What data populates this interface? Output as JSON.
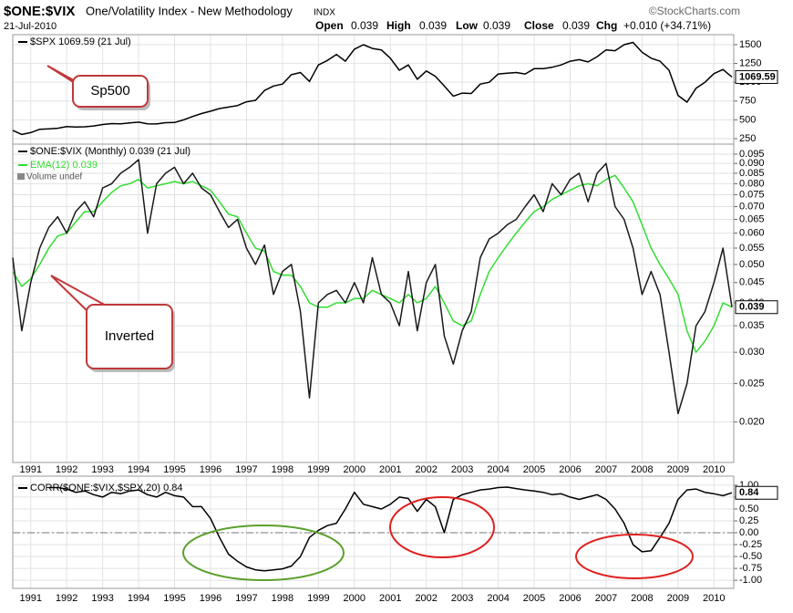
{
  "header": {
    "symbol": "$ONE:$VIX",
    "name": "One/Volatility Index - New Methodology",
    "exchange": "INDX",
    "source": "©StockCharts.com",
    "date": "21-Jul-2010",
    "quote": [
      {
        "label": "Open",
        "value": 0.039
      },
      {
        "label": "High",
        "value": 0.039
      },
      {
        "label": "Low",
        "value": 0.039
      },
      {
        "label": "Close",
        "value": 0.039
      },
      {
        "label": "Chg",
        "value": "+0.010 (+34.71%)"
      }
    ]
  },
  "chart_data": [
    {
      "type": "line",
      "annotation": "Sp500",
      "last_value": 1069.59,
      "grid": true,
      "x": [
        1990.5,
        1990.75,
        1991,
        1991.25,
        1991.5,
        1991.75,
        1992,
        1992.25,
        1992.5,
        1992.75,
        1993,
        1993.25,
        1993.5,
        1993.75,
        1994,
        1994.25,
        1994.5,
        1994.75,
        1995,
        1995.25,
        1995.5,
        1995.75,
        1996,
        1996.25,
        1996.5,
        1996.75,
        1997,
        1997.25,
        1997.5,
        1997.75,
        1998,
        1998.25,
        1998.5,
        1998.75,
        1999,
        1999.25,
        1999.5,
        1999.75,
        2000,
        2000.25,
        2000.5,
        2000.75,
        2001,
        2001.25,
        2001.5,
        2001.75,
        2002,
        2002.25,
        2002.5,
        2002.75,
        2003,
        2003.25,
        2003.5,
        2003.75,
        2004,
        2004.25,
        2004.5,
        2004.75,
        2005,
        2005.25,
        2005.5,
        2005.75,
        2006,
        2006.25,
        2006.5,
        2006.75,
        2007,
        2007.25,
        2007.5,
        2007.75,
        2008,
        2008.25,
        2008.5,
        2008.75,
        2009,
        2009.25,
        2009.5,
        2009.75,
        2010,
        2010.25,
        2010.5
      ],
      "xlim": [
        1990.5,
        2010.55
      ],
      "ylim": [
        177,
        1633
      ],
      "yticks": [
        250,
        500,
        750,
        1000,
        1250,
        1500
      ],
      "series": [
        {
          "name": "$SPX 1069.59 (21 Jul)",
          "color": "#000000",
          "values": [
            360,
            306,
            330,
            375,
            380,
            388,
            410,
            404,
            408,
            418,
            438,
            450,
            448,
            460,
            470,
            448,
            445,
            462,
            465,
            500,
            545,
            584,
            615,
            650,
            670,
            690,
            740,
            760,
            890,
            950,
            975,
            1100,
            1130,
            1010,
            1230,
            1290,
            1370,
            1280,
            1440,
            1500,
            1450,
            1430,
            1320,
            1160,
            1230,
            1040,
            1150,
            1080,
            950,
            815,
            855,
            850,
            975,
            1000,
            1110,
            1120,
            1130,
            1110,
            1180,
            1180,
            1200,
            1230,
            1280,
            1300,
            1270,
            1340,
            1430,
            1420,
            1500,
            1530,
            1400,
            1320,
            1280,
            1160,
            825,
            735,
            920,
            1000,
            1115,
            1170,
            1070
          ]
        }
      ]
    },
    {
      "type": "line",
      "annotation": "Inverted",
      "last_value": 0.039,
      "log_scale": true,
      "grid": true,
      "volume_note": "Volume undef",
      "x": [
        1990.5,
        1990.75,
        1991,
        1991.25,
        1991.5,
        1991.75,
        1992,
        1992.25,
        1992.5,
        1992.75,
        1993,
        1993.25,
        1993.5,
        1993.75,
        1994,
        1994.25,
        1994.5,
        1994.75,
        1995,
        1995.25,
        1995.5,
        1995.75,
        1996,
        1996.25,
        1996.5,
        1996.75,
        1997,
        1997.25,
        1997.5,
        1997.75,
        1998,
        1998.25,
        1998.5,
        1998.75,
        1999,
        1999.25,
        1999.5,
        1999.75,
        2000,
        2000.25,
        2000.5,
        2000.75,
        2001,
        2001.25,
        2001.5,
        2001.75,
        2002,
        2002.25,
        2002.5,
        2002.75,
        2003,
        2003.25,
        2003.5,
        2003.75,
        2004,
        2004.25,
        2004.5,
        2004.75,
        2005,
        2005.25,
        2005.5,
        2005.75,
        2006,
        2006.25,
        2006.5,
        2006.75,
        2007,
        2007.25,
        2007.5,
        2007.75,
        2008,
        2008.25,
        2008.5,
        2008.75,
        2009,
        2009.25,
        2009.5,
        2009.75,
        2010,
        2010.25,
        2010.5
      ],
      "xlim": [
        1990.5,
        2010.55
      ],
      "xticks": [
        1991,
        1992,
        1993,
        1994,
        1995,
        1996,
        1997,
        1998,
        1999,
        2000,
        2001,
        2002,
        2003,
        2004,
        2005,
        2006,
        2007,
        2008,
        2009,
        2010
      ],
      "ylim": [
        0.0158,
        0.1007
      ],
      "yticks": [
        0.095,
        {
          "value": 0.09,
          "label": "0.090"
        },
        0.085,
        {
          "value": 0.08,
          "label": "0.080"
        },
        0.075,
        {
          "value": 0.07,
          "label": "0.070"
        },
        0.065,
        {
          "value": 0.06,
          "label": "0.060"
        },
        0.055,
        {
          "value": 0.05,
          "label": "0.050"
        },
        0.045,
        {
          "value": 0.04,
          "label": "0.040"
        },
        0.035,
        {
          "value": 0.03,
          "label": "0.030"
        },
        0.025,
        {
          "value": 0.02,
          "label": "0.020"
        }
      ],
      "series": [
        {
          "name": "$ONE:$VIX (Monthly) 0.039 (21 Jul)",
          "color": "#1a1a1a",
          "values": [
            0.052,
            0.034,
            0.045,
            0.055,
            0.062,
            0.066,
            0.06,
            0.068,
            0.072,
            0.066,
            0.078,
            0.08,
            0.085,
            0.088,
            0.092,
            0.06,
            0.08,
            0.085,
            0.088,
            0.08,
            0.085,
            0.078,
            0.075,
            0.068,
            0.062,
            0.065,
            0.055,
            0.05,
            0.056,
            0.042,
            0.048,
            0.05,
            0.038,
            0.023,
            0.04,
            0.042,
            0.043,
            0.04,
            0.045,
            0.04,
            0.052,
            0.042,
            0.04,
            0.035,
            0.048,
            0.034,
            0.045,
            0.05,
            0.033,
            0.028,
            0.034,
            0.038,
            0.052,
            0.058,
            0.06,
            0.063,
            0.065,
            0.07,
            0.075,
            0.068,
            0.08,
            0.075,
            0.082,
            0.085,
            0.072,
            0.085,
            0.09,
            0.07,
            0.065,
            0.055,
            0.042,
            0.048,
            0.042,
            0.03,
            0.021,
            0.025,
            0.035,
            0.038,
            0.045,
            0.055,
            0.039
          ]
        },
        {
          "name": "EMA(12) 0.039",
          "color": "#33dd33",
          "values": [
            0.048,
            0.044,
            0.046,
            0.05,
            0.055,
            0.059,
            0.06,
            0.064,
            0.068,
            0.068,
            0.072,
            0.076,
            0.079,
            0.08,
            0.082,
            0.078,
            0.079,
            0.08,
            0.081,
            0.08,
            0.081,
            0.079,
            0.077,
            0.072,
            0.067,
            0.066,
            0.06,
            0.055,
            0.054,
            0.048,
            0.047,
            0.047,
            0.044,
            0.04,
            0.039,
            0.039,
            0.04,
            0.04,
            0.041,
            0.041,
            0.043,
            0.042,
            0.041,
            0.04,
            0.042,
            0.04,
            0.041,
            0.044,
            0.04,
            0.036,
            0.035,
            0.036,
            0.042,
            0.048,
            0.052,
            0.056,
            0.06,
            0.064,
            0.068,
            0.07,
            0.073,
            0.075,
            0.077,
            0.079,
            0.08,
            0.079,
            0.082,
            0.084,
            0.078,
            0.072,
            0.063,
            0.055,
            0.05,
            0.046,
            0.042,
            0.034,
            0.03,
            0.032,
            0.035,
            0.04,
            0.039
          ]
        }
      ]
    },
    {
      "type": "line",
      "last_value": 0.84,
      "reference_line": 0,
      "grid": true,
      "x": [
        1990.5,
        1990.75,
        1991,
        1991.25,
        1991.5,
        1991.75,
        1992,
        1992.25,
        1992.5,
        1992.75,
        1993,
        1993.25,
        1993.5,
        1993.75,
        1994,
        1994.25,
        1994.5,
        1994.75,
        1995,
        1995.25,
        1995.5,
        1995.75,
        1996,
        1996.25,
        1996.5,
        1996.75,
        1997,
        1997.25,
        1997.5,
        1997.75,
        1998,
        1998.25,
        1998.5,
        1998.75,
        1999,
        1999.25,
        1999.5,
        1999.75,
        2000,
        2000.25,
        2000.5,
        2000.75,
        2001,
        2001.25,
        2001.5,
        2001.75,
        2002,
        2002.25,
        2002.5,
        2002.75,
        2003,
        2003.25,
        2003.5,
        2003.75,
        2004,
        2004.25,
        2004.5,
        2004.75,
        2005,
        2005.25,
        2005.5,
        2005.75,
        2006,
        2006.25,
        2006.5,
        2006.75,
        2007,
        2007.25,
        2007.5,
        2007.75,
        2008,
        2008.25,
        2008.5,
        2008.75,
        2009,
        2009.25,
        2009.5,
        2009.75,
        2010,
        2010.25,
        2010.5
      ],
      "xlim": [
        1990.5,
        2010.55
      ],
      "xticks": [
        1991,
        1992,
        1993,
        1994,
        1995,
        1996,
        1997,
        1998,
        1999,
        2000,
        2001,
        2002,
        2003,
        2004,
        2005,
        2006,
        2007,
        2008,
        2009,
        2010
      ],
      "ylim": [
        -1.17,
        1.19
      ],
      "yticks": [
        {
          "value": 1,
          "label": "1.00"
        },
        {
          "value": 0.75,
          "label": "0.75"
        },
        {
          "value": 0.5,
          "label": "0.50"
        },
        {
          "value": 0.25,
          "label": "0.25"
        },
        {
          "value": 0,
          "label": "0.00"
        },
        {
          "value": -0.25,
          "label": "-0.25"
        },
        {
          "value": -0.5,
          "label": "-0.50"
        },
        {
          "value": -0.75,
          "label": "-0.75"
        },
        {
          "value": -1,
          "label": "-1.00"
        }
      ],
      "series": [
        {
          "name": "CORR($ONE:$VIX,$SPX,20) 0.84",
          "color": "#000000",
          "values": [
            null,
            null,
            null,
            null,
            0.95,
            0.95,
            0.92,
            0.85,
            0.88,
            0.8,
            0.75,
            0.85,
            0.82,
            0.88,
            0.9,
            0.8,
            0.75,
            0.85,
            0.78,
            0.75,
            0.55,
            0.55,
            0.3,
            -0.1,
            -0.45,
            -0.6,
            -0.72,
            -0.78,
            -0.8,
            -0.78,
            -0.76,
            -0.7,
            -0.5,
            -0.1,
            0.05,
            0.15,
            0.2,
            0.5,
            0.85,
            0.6,
            0.55,
            0.5,
            0.6,
            0.75,
            0.72,
            0.45,
            0.7,
            0.55,
            0.0,
            0.7,
            0.8,
            0.85,
            0.9,
            0.92,
            0.95,
            0.96,
            0.93,
            0.9,
            0.88,
            0.85,
            0.8,
            0.82,
            0.75,
            0.7,
            0.75,
            0.8,
            0.7,
            0.5,
            0.2,
            -0.25,
            -0.4,
            -0.38,
            -0.1,
            0.2,
            0.7,
            0.9,
            0.92,
            0.85,
            0.82,
            0.78,
            0.84
          ]
        }
      ]
    }
  ]
}
